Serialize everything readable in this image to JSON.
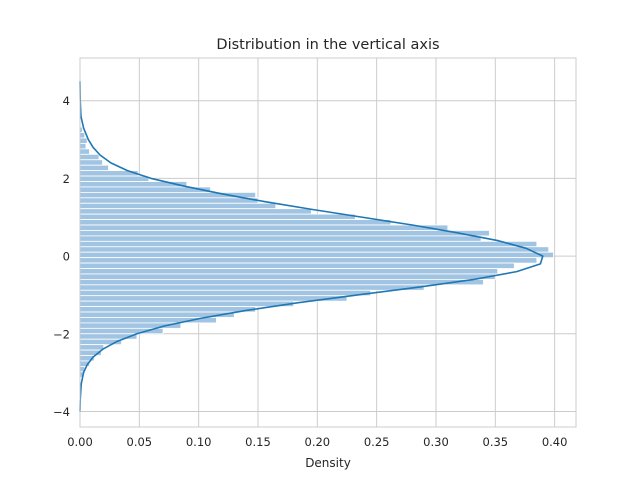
{
  "chart_data": {
    "type": "bar",
    "orientation": "horizontal",
    "title": "Distribution in the vertical axis",
    "xlabel": "Density",
    "ylabel": "",
    "xlim": [
      0,
      0.418
    ],
    "ylim": [
      -4.4,
      5.1
    ],
    "grid": true,
    "x_ticks": [
      0.0,
      0.05,
      0.1,
      0.15,
      0.2,
      0.25,
      0.3,
      0.35,
      0.4
    ],
    "x_tick_labels": [
      "0.00",
      "0.05",
      "0.10",
      "0.15",
      "0.20",
      "0.25",
      "0.30",
      "0.35",
      "0.40"
    ],
    "y_ticks": [
      4,
      2,
      0,
      -2,
      -4
    ],
    "y_tick_labels": [
      "4",
      "2",
      "0",
      "−2",
      "−4"
    ],
    "colors": {
      "bars": "#a1c4e3",
      "kde": "#1f77b4",
      "grid": "#cccccc",
      "background": "#ffffff"
    },
    "histogram": {
      "bin_width": 0.14,
      "bins": [
        {
          "y": 3.25,
          "density": 0.002
        },
        {
          "y": 3.11,
          "density": 0.004
        },
        {
          "y": 2.97,
          "density": 0.006
        },
        {
          "y": 2.83,
          "density": 0.005
        },
        {
          "y": 2.69,
          "density": 0.008
        },
        {
          "y": 2.55,
          "density": 0.016
        },
        {
          "y": 2.41,
          "density": 0.019
        },
        {
          "y": 2.27,
          "density": 0.024
        },
        {
          "y": 2.13,
          "density": 0.049
        },
        {
          "y": 1.99,
          "density": 0.058
        },
        {
          "y": 1.85,
          "density": 0.09
        },
        {
          "y": 1.71,
          "density": 0.11
        },
        {
          "y": 1.57,
          "density": 0.148
        },
        {
          "y": 1.43,
          "density": 0.15
        },
        {
          "y": 1.29,
          "density": 0.165
        },
        {
          "y": 1.15,
          "density": 0.195
        },
        {
          "y": 1.01,
          "density": 0.232
        },
        {
          "y": 0.87,
          "density": 0.262
        },
        {
          "y": 0.73,
          "density": 0.31
        },
        {
          "y": 0.59,
          "density": 0.345
        },
        {
          "y": 0.45,
          "density": 0.338
        },
        {
          "y": 0.31,
          "density": 0.385
        },
        {
          "y": 0.17,
          "density": 0.395
        },
        {
          "y": 0.03,
          "density": 0.399
        },
        {
          "y": -0.11,
          "density": 0.385
        },
        {
          "y": -0.25,
          "density": 0.366
        },
        {
          "y": -0.39,
          "density": 0.352
        },
        {
          "y": -0.53,
          "density": 0.35
        },
        {
          "y": -0.67,
          "density": 0.34
        },
        {
          "y": -0.81,
          "density": 0.29
        },
        {
          "y": -0.95,
          "density": 0.245
        },
        {
          "y": -1.09,
          "density": 0.225
        },
        {
          "y": -1.23,
          "density": 0.18
        },
        {
          "y": -1.37,
          "density": 0.148
        },
        {
          "y": -1.51,
          "density": 0.13
        },
        {
          "y": -1.65,
          "density": 0.115
        },
        {
          "y": -1.79,
          "density": 0.085
        },
        {
          "y": -1.93,
          "density": 0.07
        },
        {
          "y": -2.07,
          "density": 0.048
        },
        {
          "y": -2.21,
          "density": 0.035
        },
        {
          "y": -2.35,
          "density": 0.02
        },
        {
          "y": -2.49,
          "density": 0.018
        },
        {
          "y": -2.63,
          "density": 0.012
        },
        {
          "y": -2.77,
          "density": 0.008
        },
        {
          "y": -2.91,
          "density": 0.004
        },
        {
          "y": -3.05,
          "density": 0.003
        }
      ]
    },
    "kde": {
      "curve": [
        {
          "y": 4.5,
          "density": 0.0
        },
        {
          "y": 4.0,
          "density": 0.0002
        },
        {
          "y": 3.6,
          "density": 0.0008
        },
        {
          "y": 3.3,
          "density": 0.003
        },
        {
          "y": 3.0,
          "density": 0.007
        },
        {
          "y": 2.8,
          "density": 0.011
        },
        {
          "y": 2.6,
          "density": 0.017
        },
        {
          "y": 2.4,
          "density": 0.026
        },
        {
          "y": 2.2,
          "density": 0.04
        },
        {
          "y": 2.0,
          "density": 0.06
        },
        {
          "y": 1.8,
          "density": 0.088
        },
        {
          "y": 1.6,
          "density": 0.12
        },
        {
          "y": 1.4,
          "density": 0.156
        },
        {
          "y": 1.2,
          "density": 0.196
        },
        {
          "y": 1.0,
          "density": 0.238
        },
        {
          "y": 0.8,
          "density": 0.28
        },
        {
          "y": 0.6,
          "density": 0.318
        },
        {
          "y": 0.4,
          "density": 0.352
        },
        {
          "y": 0.2,
          "density": 0.376
        },
        {
          "y": 0.0,
          "density": 0.39
        },
        {
          "y": -0.2,
          "density": 0.388
        },
        {
          "y": -0.4,
          "density": 0.368
        },
        {
          "y": -0.6,
          "density": 0.332
        },
        {
          "y": -0.8,
          "density": 0.285
        },
        {
          "y": -1.0,
          "density": 0.234
        },
        {
          "y": -1.2,
          "density": 0.184
        },
        {
          "y": -1.4,
          "density": 0.14
        },
        {
          "y": -1.6,
          "density": 0.102
        },
        {
          "y": -1.8,
          "density": 0.071
        },
        {
          "y": -2.0,
          "density": 0.048
        },
        {
          "y": -2.2,
          "density": 0.031
        },
        {
          "y": -2.4,
          "density": 0.019
        },
        {
          "y": -2.6,
          "density": 0.011
        },
        {
          "y": -2.8,
          "density": 0.006
        },
        {
          "y": -3.0,
          "density": 0.003
        },
        {
          "y": -3.3,
          "density": 0.001
        },
        {
          "y": -3.7,
          "density": 0.0002
        },
        {
          "y": -4.0,
          "density": 0.0
        }
      ]
    }
  }
}
